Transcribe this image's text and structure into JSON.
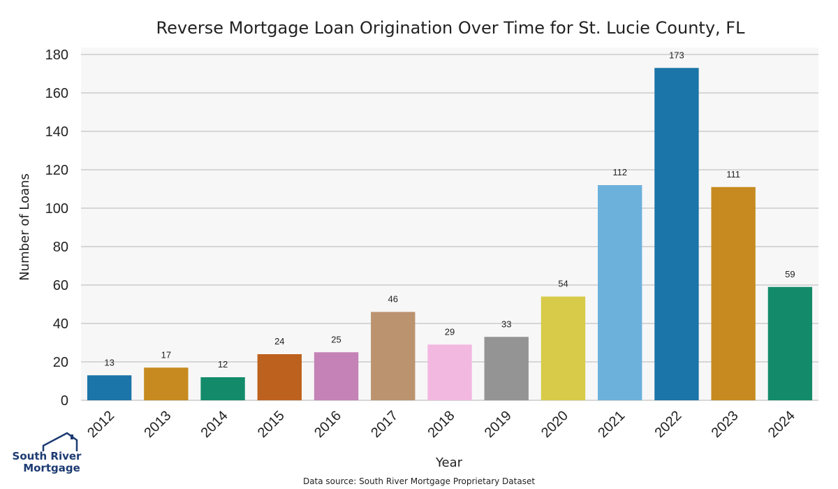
{
  "chart_data": {
    "type": "bar",
    "title": "Reverse Mortgage Loan Origination Over Time for St. Lucie County, FL",
    "xlabel": "Year",
    "ylabel": "Number of Loans",
    "categories": [
      "2012",
      "2013",
      "2014",
      "2015",
      "2016",
      "2017",
      "2018",
      "2019",
      "2020",
      "2021",
      "2022",
      "2023",
      "2024"
    ],
    "values": [
      13,
      17,
      12,
      24,
      25,
      46,
      29,
      33,
      54,
      112,
      173,
      111,
      59
    ],
    "colors": [
      "#1b75a8",
      "#c68a20",
      "#138b6a",
      "#bd611e",
      "#c482b6",
      "#bc936f",
      "#f2b8e0",
      "#949494",
      "#d7cb49",
      "#6bb1dc",
      "#1b75a8",
      "#c68a20",
      "#138b6a"
    ],
    "ylim": [
      0,
      180
    ],
    "yticks": [
      0,
      20,
      40,
      60,
      80,
      100,
      120,
      140,
      160,
      180
    ],
    "grid": true,
    "plot_background": "#f7f7f7"
  },
  "source_note": "Data source: South River Mortgage Proprietary Dataset",
  "logo": {
    "line1": "South River",
    "line2": "Mortgage",
    "color": "#1d3b72"
  }
}
